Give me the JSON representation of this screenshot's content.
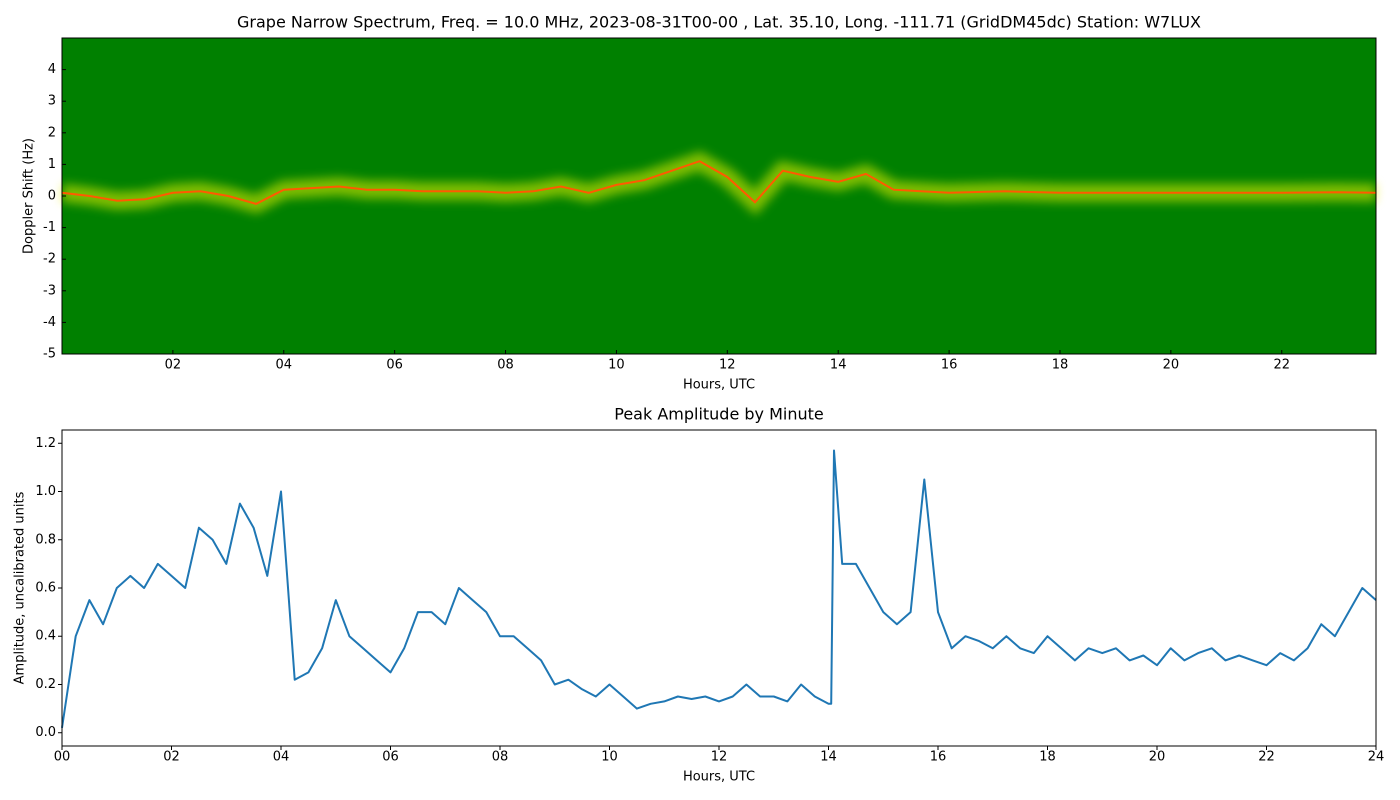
{
  "chart_data": [
    {
      "type": "spectrogram",
      "title": "Grape Narrow Spectrum, Freq. = 10.0 MHz, 2023-08-31T00-00 , Lat.  35.10, Long. -111.71 (GridDM45dc) Station: W7LUX",
      "xlabel": "Hours, UTC",
      "ylabel": "Doppler Shift (Hz)",
      "background_color": "#008000",
      "band_color": "#e8f000",
      "trace_color": "#ff5a00",
      "x": [
        0,
        0.5,
        1,
        1.5,
        2,
        2.5,
        3,
        3.5,
        4,
        4.5,
        5,
        5.5,
        6,
        6.5,
        7,
        7.5,
        8,
        8.5,
        9,
        9.5,
        10,
        10.5,
        11,
        11.5,
        12,
        12.5,
        13,
        13.5,
        14,
        14.5,
        15,
        15.5,
        16,
        17,
        18,
        19,
        20,
        21,
        22,
        23,
        23.7
      ],
      "values": [
        0.1,
        0,
        -0.15,
        -0.1,
        0.1,
        0.15,
        0,
        -0.25,
        0.2,
        0.25,
        0.3,
        0.2,
        0.2,
        0.15,
        0.15,
        0.15,
        0.1,
        0.15,
        0.3,
        0.1,
        0.35,
        0.5,
        0.8,
        1.1,
        0.6,
        -0.2,
        0.8,
        0.6,
        0.45,
        0.7,
        0.2,
        0.15,
        0.1,
        0.15,
        0.1,
        0.1,
        0.1,
        0.1,
        0.1,
        0.12,
        0.1
      ],
      "xlim": [
        0,
        23.7
      ],
      "ylim": [
        -5,
        5
      ],
      "xticks": [
        {
          "value": 2,
          "label": "02"
        },
        {
          "value": 4,
          "label": "04"
        },
        {
          "value": 6,
          "label": "06"
        },
        {
          "value": 8,
          "label": "08"
        },
        {
          "value": 10,
          "label": "10"
        },
        {
          "value": 12,
          "label": "12"
        },
        {
          "value": 14,
          "label": "14"
        },
        {
          "value": 16,
          "label": "16"
        },
        {
          "value": 18,
          "label": "18"
        },
        {
          "value": 20,
          "label": "20"
        },
        {
          "value": 22,
          "label": "22"
        }
      ],
      "yticks": [
        -5,
        -4,
        -3,
        -2,
        -1,
        0,
        1,
        2,
        3,
        4
      ]
    },
    {
      "type": "line",
      "title": "Peak Amplitude by Minute",
      "xlabel": "Hours, UTC",
      "ylabel": "Amplitude, uncalibrated units",
      "color": "#1f77b4",
      "x": [
        0,
        0.25,
        0.5,
        0.75,
        1,
        1.25,
        1.5,
        1.75,
        2,
        2.25,
        2.5,
        2.75,
        3,
        3.25,
        3.5,
        3.75,
        4,
        4.25,
        4.5,
        4.75,
        5,
        5.25,
        5.5,
        5.75,
        6,
        6.25,
        6.5,
        6.75,
        7,
        7.25,
        7.5,
        7.75,
        8,
        8.25,
        8.5,
        8.75,
        9,
        9.25,
        9.5,
        9.75,
        10,
        10.25,
        10.5,
        10.75,
        11,
        11.25,
        11.5,
        11.75,
        12,
        12.25,
        12.5,
        12.75,
        13,
        13.25,
        13.5,
        13.75,
        14,
        14.05,
        14.1,
        14.25,
        14.5,
        14.75,
        15,
        15.25,
        15.5,
        15.75,
        16,
        16.25,
        16.5,
        16.75,
        17,
        17.25,
        17.5,
        17.75,
        18,
        18.25,
        18.5,
        18.75,
        19,
        19.25,
        19.5,
        19.75,
        20,
        20.25,
        20.5,
        20.75,
        21,
        21.25,
        21.5,
        21.75,
        22,
        22.25,
        22.5,
        22.75,
        23,
        23.25,
        23.5,
        23.75,
        24
      ],
      "values": [
        0.02,
        0.4,
        0.55,
        0.45,
        0.6,
        0.65,
        0.6,
        0.7,
        0.65,
        0.6,
        0.85,
        0.8,
        0.7,
        0.95,
        0.85,
        0.65,
        1.0,
        0.22,
        0.25,
        0.35,
        0.55,
        0.4,
        0.35,
        0.3,
        0.25,
        0.35,
        0.5,
        0.5,
        0.45,
        0.6,
        0.55,
        0.5,
        0.4,
        0.4,
        0.35,
        0.3,
        0.2,
        0.22,
        0.18,
        0.15,
        0.2,
        0.15,
        0.1,
        0.12,
        0.13,
        0.15,
        0.14,
        0.15,
        0.13,
        0.15,
        0.2,
        0.15,
        0.15,
        0.13,
        0.2,
        0.15,
        0.12,
        0.12,
        1.17,
        0.7,
        0.7,
        0.6,
        0.5,
        0.45,
        0.5,
        1.05,
        0.5,
        0.35,
        0.4,
        0.38,
        0.35,
        0.4,
        0.35,
        0.33,
        0.4,
        0.35,
        0.3,
        0.35,
        0.33,
        0.35,
        0.3,
        0.32,
        0.28,
        0.35,
        0.3,
        0.33,
        0.35,
        0.3,
        0.32,
        0.3,
        0.28,
        0.33,
        0.3,
        0.35,
        0.45,
        0.4,
        0.5,
        0.6,
        0.55
      ],
      "xlim": [
        0,
        24
      ],
      "ylim": [
        -0.055,
        1.255
      ],
      "xticks": [
        {
          "value": 0,
          "label": "00"
        },
        {
          "value": 2,
          "label": "02"
        },
        {
          "value": 4,
          "label": "04"
        },
        {
          "value": 6,
          "label": "06"
        },
        {
          "value": 8,
          "label": "08"
        },
        {
          "value": 10,
          "label": "10"
        },
        {
          "value": 12,
          "label": "12"
        },
        {
          "value": 14,
          "label": "14"
        },
        {
          "value": 16,
          "label": "16"
        },
        {
          "value": 18,
          "label": "18"
        },
        {
          "value": 20,
          "label": "20"
        },
        {
          "value": 22,
          "label": "22"
        },
        {
          "value": 24,
          "label": "24"
        }
      ],
      "yticks": [
        {
          "value": 0,
          "label": "0.0"
        },
        0.2,
        0.4,
        0.6,
        0.8,
        {
          "value": 1,
          "label": "1.0"
        },
        1.2
      ]
    }
  ]
}
